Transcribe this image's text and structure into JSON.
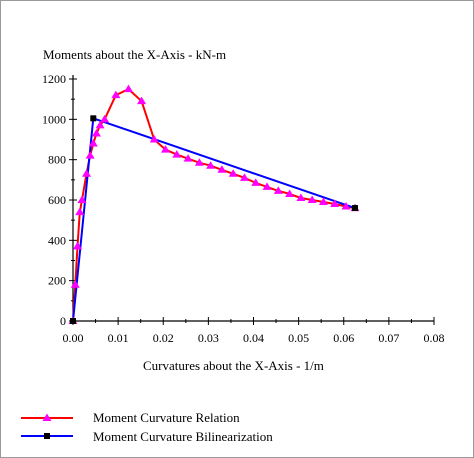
{
  "chart_data": {
    "type": "line",
    "title": "",
    "ylabel": "Moments about the X-Axis - kN-m",
    "xlabel": "Curvatures about the X-Axis - 1/m",
    "xlim": [
      0,
      0.08
    ],
    "ylim": [
      0,
      1200
    ],
    "x_ticks": [
      "0.00",
      "0.01",
      "0.02",
      "0.03",
      "0.04",
      "0.05",
      "0.06",
      "0.07",
      "0.08"
    ],
    "y_ticks": [
      "0",
      "200",
      "400",
      "600",
      "800",
      "1000",
      "1200"
    ],
    "grid": false,
    "legend_position": "bottom-left",
    "series": [
      {
        "name": "Moment Curvature Relation",
        "color": "#ff0000",
        "marker": "triangle",
        "marker_color": "#ff00ff",
        "x": [
          0.0,
          0.0005,
          0.001,
          0.0015,
          0.002,
          0.003,
          0.0038,
          0.0045,
          0.0052,
          0.006,
          0.007,
          0.0095,
          0.0123,
          0.0152,
          0.018,
          0.0205,
          0.023,
          0.0255,
          0.028,
          0.0305,
          0.033,
          0.0355,
          0.038,
          0.0405,
          0.043,
          0.0455,
          0.048,
          0.0505,
          0.053,
          0.0555,
          0.058,
          0.0605,
          0.0625
        ],
        "y": [
          0,
          180,
          370,
          540,
          600,
          730,
          820,
          880,
          930,
          970,
          1000,
          1120,
          1150,
          1090,
          900,
          850,
          825,
          805,
          785,
          770,
          750,
          730,
          710,
          685,
          665,
          645,
          630,
          610,
          600,
          590,
          580,
          568,
          560
        ]
      },
      {
        "name": "Moment Curvature Bilinearization",
        "color": "#0000ff",
        "marker": "square",
        "marker_color": "#000000",
        "x": [
          0.0,
          0.0045,
          0.0625
        ],
        "y": [
          0,
          1005,
          560
        ]
      }
    ]
  }
}
